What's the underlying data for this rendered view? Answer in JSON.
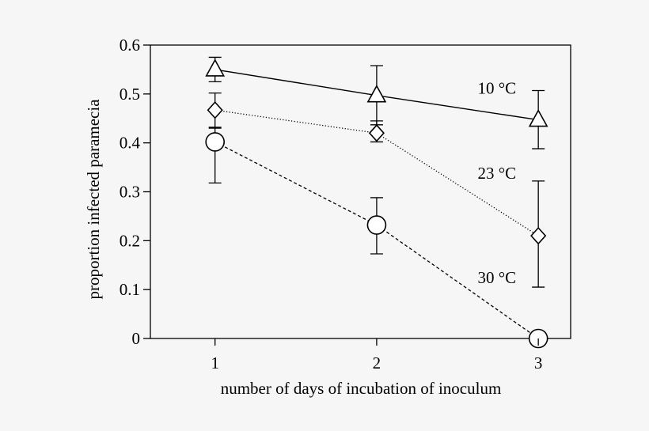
{
  "chart_data": {
    "type": "line",
    "title": "",
    "xlabel": "number of days of incubation of inoculum",
    "ylabel": "proportion infected paramecia",
    "x_ticks": [
      "1",
      "2",
      "3"
    ],
    "y_ticks": [
      "0",
      "0.1",
      "0.2",
      "0.3",
      "0.4",
      "0.5",
      "0.6"
    ],
    "xlim": [
      0.6,
      3.2
    ],
    "ylim": [
      0,
      0.6
    ],
    "grid": false,
    "series": [
      {
        "name": "10 °C",
        "marker": "triangle",
        "line_style": "solid",
        "x": [
          1,
          2,
          3
        ],
        "y": [
          0.55,
          0.497,
          0.447
        ],
        "err_upper": [
          0.575,
          0.558,
          0.507
        ],
        "err_lower": [
          0.525,
          0.437,
          0.388
        ]
      },
      {
        "name": "23 °C",
        "marker": "diamond",
        "line_style": "dotted",
        "x": [
          1,
          2,
          3
        ],
        "y": [
          0.467,
          0.42,
          0.21
        ],
        "err_upper": [
          0.502,
          0.445,
          0.322
        ],
        "err_lower": [
          0.432,
          0.402,
          0.105
        ]
      },
      {
        "name": "30 °C",
        "marker": "circle",
        "line_style": "dashed",
        "x": [
          1,
          2,
          3
        ],
        "y": [
          0.402,
          0.232,
          0.0
        ],
        "err_upper": [
          0.43,
          0.288,
          0.0
        ],
        "err_lower": [
          0.318,
          0.173,
          0.0
        ]
      }
    ]
  }
}
